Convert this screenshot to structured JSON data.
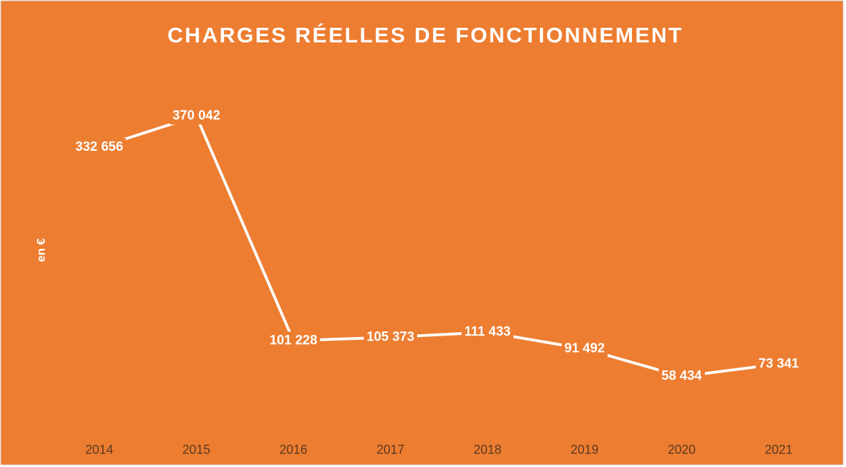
{
  "chart_data": {
    "type": "line",
    "title": "CHARGES RÉELLES DE FONCTIONNEMENT",
    "y_label": "en €",
    "categories": [
      "2014",
      "2015",
      "2016",
      "2017",
      "2018",
      "2019",
      "2020",
      "2021"
    ],
    "values": [
      332656,
      370042,
      101228,
      105373,
      111433,
      91492,
      58434,
      73341
    ],
    "value_labels": [
      "332 656",
      "370 042",
      "101 228",
      "105 373",
      "111 433",
      "91 492",
      "58 434",
      "73 341"
    ],
    "color": "#ffffff",
    "background": "#ed7d31",
    "ylim": [
      0,
      400000
    ],
    "drop_lines": true,
    "grid": false
  }
}
